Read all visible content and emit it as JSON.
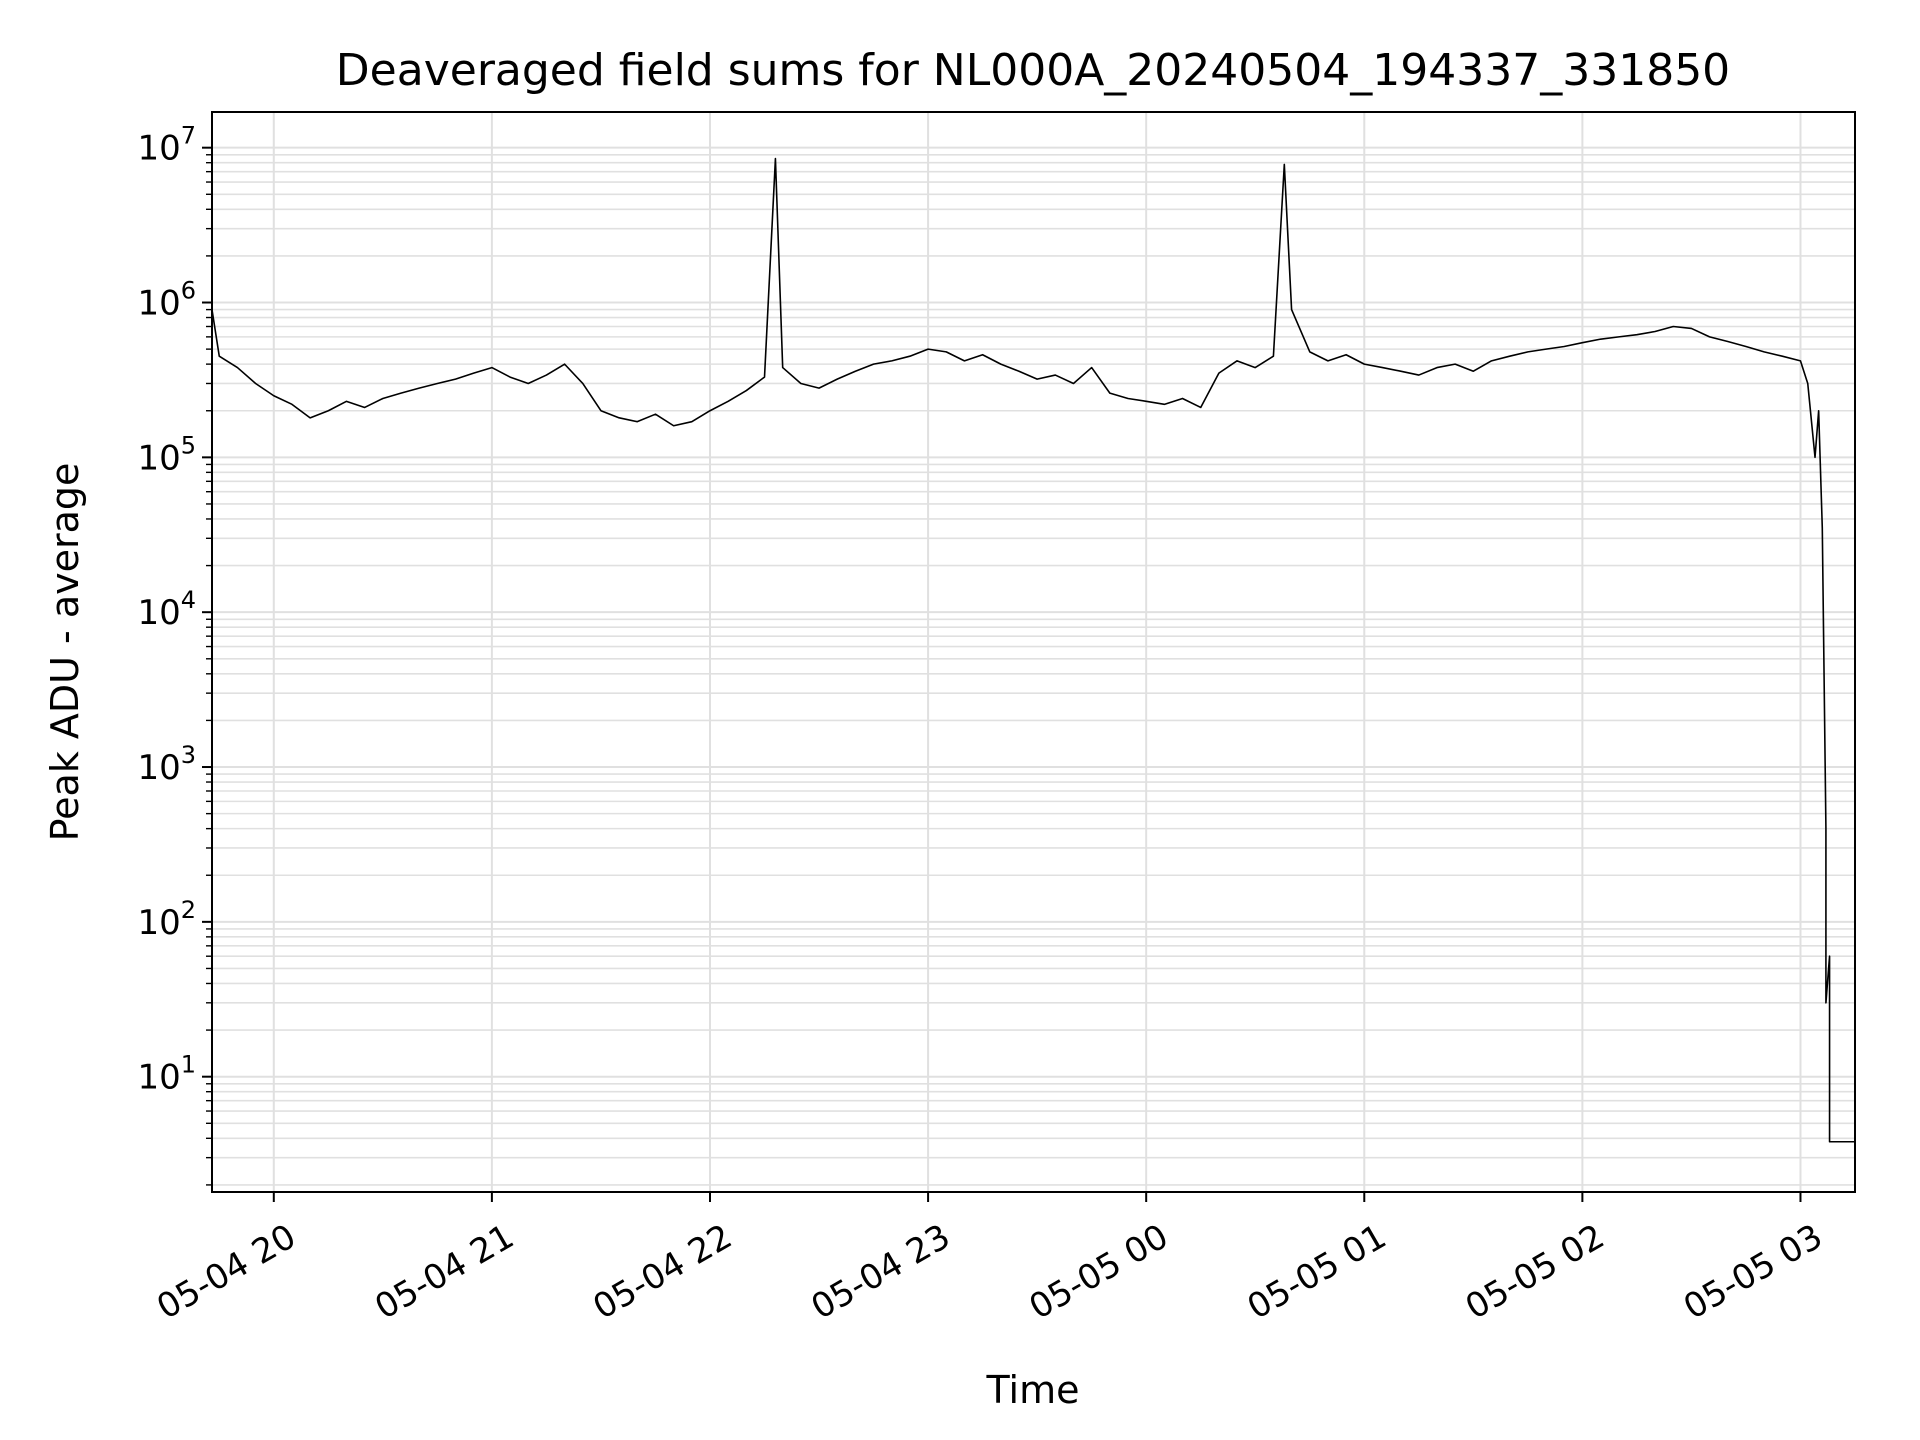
{
  "chart_data": {
    "type": "line",
    "title": "Deaveraged field sums for NL000A_20240504_194337_331850",
    "xlabel": "Time",
    "ylabel": "Peak ADU - average",
    "yscale": "log",
    "grid": true,
    "line_color": "#000000",
    "grid_color": "#e0e0e0",
    "xlim": [
      "2024-05-04 19:43",
      "2024-05-05 03:15"
    ],
    "ylim": [
      1.8,
      17000000
    ],
    "x_ticks": [
      {
        "value": "2024-05-04 20:00",
        "label": "05-04 20"
      },
      {
        "value": "2024-05-04 21:00",
        "label": "05-04 21"
      },
      {
        "value": "2024-05-04 22:00",
        "label": "05-04 22"
      },
      {
        "value": "2024-05-04 23:00",
        "label": "05-04 23"
      },
      {
        "value": "2024-05-05 00:00",
        "label": "05-05 00"
      },
      {
        "value": "2024-05-05 01:00",
        "label": "05-05 01"
      },
      {
        "value": "2024-05-05 02:00",
        "label": "05-05 02"
      },
      {
        "value": "2024-05-05 03:00",
        "label": "05-05 03"
      }
    ],
    "y_ticks": [
      {
        "value": 10,
        "base": "10",
        "exp": "1"
      },
      {
        "value": 100,
        "base": "10",
        "exp": "2"
      },
      {
        "value": 1000,
        "base": "10",
        "exp": "3"
      },
      {
        "value": 10000,
        "base": "10",
        "exp": "4"
      },
      {
        "value": 100000,
        "base": "10",
        "exp": "5"
      },
      {
        "value": 1000000,
        "base": "10",
        "exp": "6"
      },
      {
        "value": 10000000,
        "base": "10",
        "exp": "7"
      }
    ],
    "series": [
      {
        "points": [
          [
            "2024-05-04 19:43",
            900000
          ],
          [
            "2024-05-04 19:45",
            450000
          ],
          [
            "2024-05-04 19:50",
            380000
          ],
          [
            "2024-05-04 19:55",
            300000
          ],
          [
            "2024-05-04 20:00",
            250000
          ],
          [
            "2024-05-04 20:05",
            220000
          ],
          [
            "2024-05-04 20:10",
            180000
          ],
          [
            "2024-05-04 20:15",
            200000
          ],
          [
            "2024-05-04 20:20",
            230000
          ],
          [
            "2024-05-04 20:25",
            210000
          ],
          [
            "2024-05-04 20:30",
            240000
          ],
          [
            "2024-05-04 20:35",
            260000
          ],
          [
            "2024-05-04 20:40",
            280000
          ],
          [
            "2024-05-04 20:45",
            300000
          ],
          [
            "2024-05-04 20:50",
            320000
          ],
          [
            "2024-05-04 20:55",
            350000
          ],
          [
            "2024-05-04 21:00",
            380000
          ],
          [
            "2024-05-04 21:05",
            330000
          ],
          [
            "2024-05-04 21:10",
            300000
          ],
          [
            "2024-05-04 21:15",
            340000
          ],
          [
            "2024-05-04 21:20",
            400000
          ],
          [
            "2024-05-04 21:25",
            300000
          ],
          [
            "2024-05-04 21:30",
            200000
          ],
          [
            "2024-05-04 21:35",
            180000
          ],
          [
            "2024-05-04 21:40",
            170000
          ],
          [
            "2024-05-04 21:45",
            190000
          ],
          [
            "2024-05-04 21:50",
            160000
          ],
          [
            "2024-05-04 21:55",
            170000
          ],
          [
            "2024-05-04 22:00",
            200000
          ],
          [
            "2024-05-04 22:05",
            230000
          ],
          [
            "2024-05-04 22:10",
            270000
          ],
          [
            "2024-05-04 22:15",
            330000
          ],
          [
            "2024-05-04 22:18",
            8500000
          ],
          [
            "2024-05-04 22:20",
            380000
          ],
          [
            "2024-05-04 22:25",
            300000
          ],
          [
            "2024-05-04 22:30",
            280000
          ],
          [
            "2024-05-04 22:35",
            320000
          ],
          [
            "2024-05-04 22:40",
            360000
          ],
          [
            "2024-05-04 22:45",
            400000
          ],
          [
            "2024-05-04 22:50",
            420000
          ],
          [
            "2024-05-04 22:55",
            450000
          ],
          [
            "2024-05-04 23:00",
            500000
          ],
          [
            "2024-05-04 23:05",
            480000
          ],
          [
            "2024-05-04 23:10",
            420000
          ],
          [
            "2024-05-04 23:15",
            460000
          ],
          [
            "2024-05-04 23:20",
            400000
          ],
          [
            "2024-05-04 23:25",
            360000
          ],
          [
            "2024-05-04 23:30",
            320000
          ],
          [
            "2024-05-04 23:35",
            340000
          ],
          [
            "2024-05-04 23:40",
            300000
          ],
          [
            "2024-05-04 23:45",
            380000
          ],
          [
            "2024-05-04 23:50",
            260000
          ],
          [
            "2024-05-04 23:55",
            240000
          ],
          [
            "2024-05-05 00:00",
            230000
          ],
          [
            "2024-05-05 00:05",
            220000
          ],
          [
            "2024-05-05 00:10",
            240000
          ],
          [
            "2024-05-05 00:15",
            210000
          ],
          [
            "2024-05-05 00:20",
            350000
          ],
          [
            "2024-05-05 00:25",
            420000
          ],
          [
            "2024-05-05 00:30",
            380000
          ],
          [
            "2024-05-05 00:35",
            450000
          ],
          [
            "2024-05-05 00:38",
            7800000
          ],
          [
            "2024-05-05 00:40",
            900000
          ],
          [
            "2024-05-05 00:45",
            480000
          ],
          [
            "2024-05-05 00:50",
            420000
          ],
          [
            "2024-05-05 00:55",
            460000
          ],
          [
            "2024-05-05 01:00",
            400000
          ],
          [
            "2024-05-05 01:05",
            380000
          ],
          [
            "2024-05-05 01:10",
            360000
          ],
          [
            "2024-05-05 01:15",
            340000
          ],
          [
            "2024-05-05 01:20",
            380000
          ],
          [
            "2024-05-05 01:25",
            400000
          ],
          [
            "2024-05-05 01:30",
            360000
          ],
          [
            "2024-05-05 01:35",
            420000
          ],
          [
            "2024-05-05 01:40",
            450000
          ],
          [
            "2024-05-05 01:45",
            480000
          ],
          [
            "2024-05-05 01:50",
            500000
          ],
          [
            "2024-05-05 01:55",
            520000
          ],
          [
            "2024-05-05 02:00",
            550000
          ],
          [
            "2024-05-05 02:05",
            580000
          ],
          [
            "2024-05-05 02:10",
            600000
          ],
          [
            "2024-05-05 02:15",
            620000
          ],
          [
            "2024-05-05 02:20",
            650000
          ],
          [
            "2024-05-05 02:25",
            700000
          ],
          [
            "2024-05-05 02:30",
            680000
          ],
          [
            "2024-05-05 02:35",
            600000
          ],
          [
            "2024-05-05 02:40",
            560000
          ],
          [
            "2024-05-05 02:45",
            520000
          ],
          [
            "2024-05-05 02:50",
            480000
          ],
          [
            "2024-05-05 02:55",
            450000
          ],
          [
            "2024-05-05 03:00",
            420000
          ],
          [
            "2024-05-05 03:02",
            300000
          ],
          [
            "2024-05-05 03:04",
            100000
          ],
          [
            "2024-05-05 03:05",
            200000
          ],
          [
            "2024-05-05 03:06",
            35000
          ],
          [
            "2024-05-05 03:07",
            400
          ],
          [
            "2024-05-05 03:07",
            30
          ],
          [
            "2024-05-05 03:08",
            60
          ],
          [
            "2024-05-05 03:08",
            3.8
          ],
          [
            "2024-05-05 03:15",
            3.8
          ]
        ]
      }
    ]
  }
}
